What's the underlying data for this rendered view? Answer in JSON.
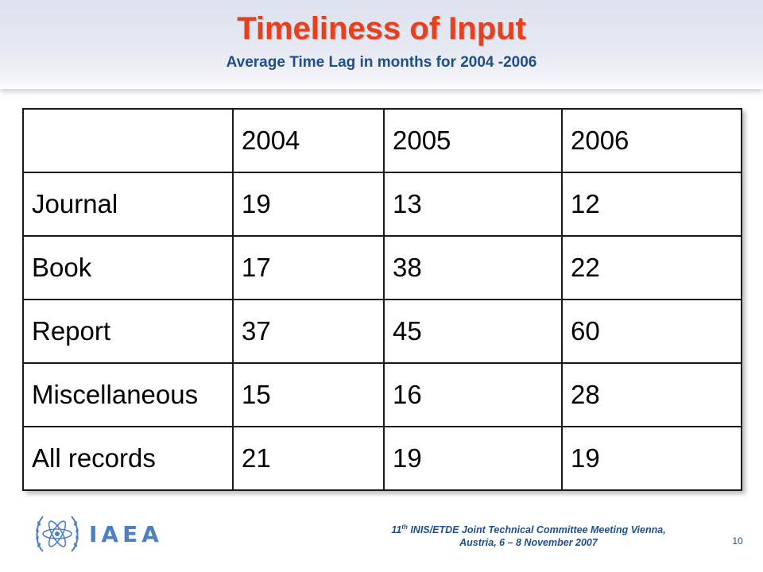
{
  "slide": {
    "title": "Timeliness of Input",
    "subtitle": "Average Time Lag in months for 2004 -2006"
  },
  "table": {
    "header": [
      "",
      "2004",
      "2005",
      "2006"
    ],
    "rows": [
      [
        "Journal",
        "19",
        "13",
        "12"
      ],
      [
        "Book",
        "17",
        "38",
        "22"
      ],
      [
        "Report",
        "37",
        "45",
        "60"
      ],
      [
        "Miscellaneous",
        "15",
        "16",
        "28"
      ],
      [
        "All records",
        "21",
        "19",
        "19"
      ]
    ]
  },
  "footer": {
    "logo_text": "IAEA",
    "line1_num": "11",
    "line1_sup": "th",
    "line1_rest": " INIS/ETDE Joint Technical Committee Meeting Vienna,",
    "line2": "Austria, 6 – 8 November 2007",
    "page_number": "10"
  },
  "colors": {
    "title": "#e8401c",
    "subtitle": "#1f4e8c",
    "logo": "#4d7fc4"
  },
  "icons": {
    "logo": "iaea-atom-olive-wreath-icon"
  }
}
